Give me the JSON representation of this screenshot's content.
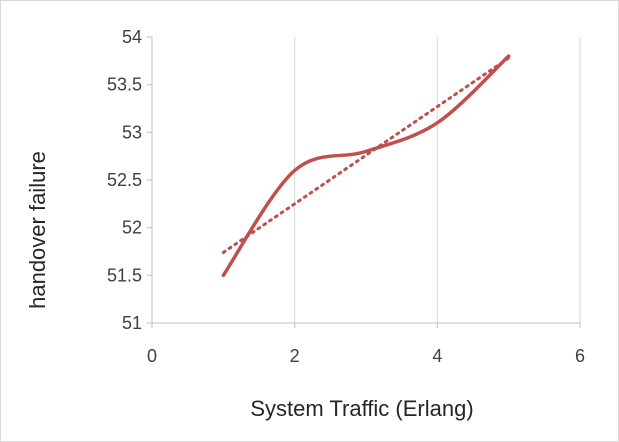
{
  "chart_data": {
    "type": "line",
    "title": "",
    "xlabel": "System Traffic (Erlang)",
    "ylabel": "handover failure",
    "xlim": [
      0,
      6
    ],
    "ylim": [
      51,
      54
    ],
    "x_ticks": [
      0,
      2,
      4,
      6
    ],
    "y_ticks": [
      51,
      51.5,
      52,
      52.5,
      53,
      53.5,
      54
    ],
    "grid": true,
    "legend": "none",
    "series": [
      {
        "style": "smooth-solid",
        "color": "#c0504d",
        "x": [
          1,
          2,
          3,
          4,
          5
        ],
        "y": [
          51.5,
          52.6,
          52.8,
          53.1,
          53.8
        ]
      },
      {
        "style": "linear-trendline-dotted",
        "color": "#c0504d",
        "x": [
          1,
          5
        ],
        "y": [
          51.74,
          53.78
        ]
      }
    ]
  }
}
